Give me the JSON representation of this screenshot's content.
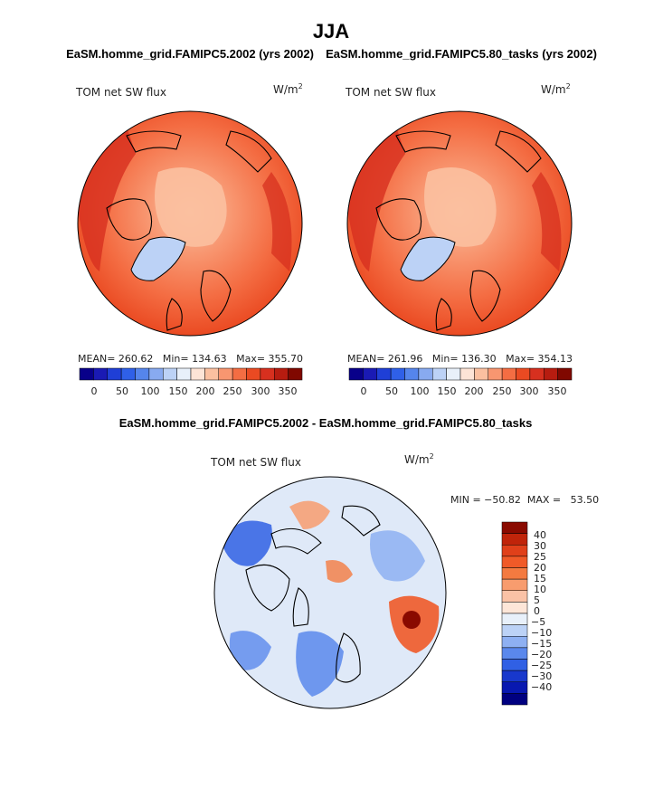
{
  "page_title": "JJA",
  "panel_left": {
    "case_title": "EaSM.homme_grid.FAMIPC5.2002 (yrs 2002)",
    "variable": "TOM net SW flux",
    "units_base": "W/m",
    "units_exp": "2",
    "stats": "MEAN= 260.62   Min= 134.63   Max= 355.70",
    "colorbar_ticks": [
      "0",
      "50",
      "100",
      "150",
      "200",
      "250",
      "300",
      "350"
    ]
  },
  "panel_right": {
    "case_title": "EaSM.homme_grid.FAMIPC5.80_tasks (yrs 2002)",
    "variable": "TOM net SW flux",
    "units_base": "W/m",
    "units_exp": "2",
    "stats": "MEAN= 261.96   Min= 136.30   Max= 354.13",
    "colorbar_ticks": [
      "0",
      "50",
      "100",
      "150",
      "200",
      "250",
      "300",
      "350"
    ]
  },
  "panel_diff": {
    "case_title": "EaSM.homme_grid.FAMIPC5.2002 - EaSM.homme_grid.FAMIPC5.80_tasks",
    "variable": "TOM net SW flux",
    "units_base": "W/m",
    "units_exp": "2",
    "minmax": "MIN = −50.82  MAX =   53.50",
    "colorbar_ticks": [
      "40",
      "30",
      "25",
      "20",
      "15",
      "10",
      "5",
      "0",
      "−5",
      "−10",
      "−15",
      "−20",
      "−25",
      "−30",
      "−40"
    ]
  },
  "chart_data": [
    {
      "type": "heatmap",
      "projection": "polar-stereographic (Arctic)",
      "title": "EaSM.homme_grid.FAMIPC5.2002 (yrs 2002)",
      "variable": "TOM net SW flux",
      "units": "W/m2",
      "mean": 260.62,
      "min": 134.63,
      "max": 355.7,
      "colorbar_range": [
        0,
        350
      ],
      "colorbar_levels": 16
    },
    {
      "type": "heatmap",
      "projection": "polar-stereographic (Arctic)",
      "title": "EaSM.homme_grid.FAMIPC5.80_tasks (yrs 2002)",
      "variable": "TOM net SW flux",
      "units": "W/m2",
      "mean": 261.96,
      "min": 136.3,
      "max": 354.13,
      "colorbar_range": [
        0,
        350
      ],
      "colorbar_levels": 16
    },
    {
      "type": "heatmap",
      "projection": "polar-stereographic (Arctic)",
      "title": "EaSM.homme_grid.FAMIPC5.2002 - EaSM.homme_grid.FAMIPC5.80_tasks",
      "variable": "TOM net SW flux",
      "units": "W/m2",
      "min": -50.82,
      "max": 53.5,
      "contour_levels": [
        -40,
        -30,
        -25,
        -20,
        -15,
        -10,
        -5,
        0,
        5,
        10,
        15,
        20,
        25,
        30,
        40
      ]
    }
  ],
  "colors": {
    "seq_palette": [
      "#08008a",
      "#1a1ab4",
      "#1f3fd6",
      "#2f60e8",
      "#5585ec",
      "#88aaf0",
      "#bcd2f6",
      "#e8f0fa",
      "#fde4d6",
      "#fbc0a0",
      "#f89670",
      "#f46d43",
      "#ea4a22",
      "#d7301f",
      "#b71c10",
      "#800800"
    ],
    "diff_palette": [
      "#8a0a00",
      "#c0240a",
      "#e0401a",
      "#f05a28",
      "#f47a40",
      "#f89c6e",
      "#fac2a6",
      "#fde6d8",
      "#e8f0fa",
      "#bcd2f6",
      "#8eb0f2",
      "#5a88ec",
      "#3060e4",
      "#1838cc",
      "#0818b0",
      "#000080"
    ],
    "outline": "#000000"
  }
}
